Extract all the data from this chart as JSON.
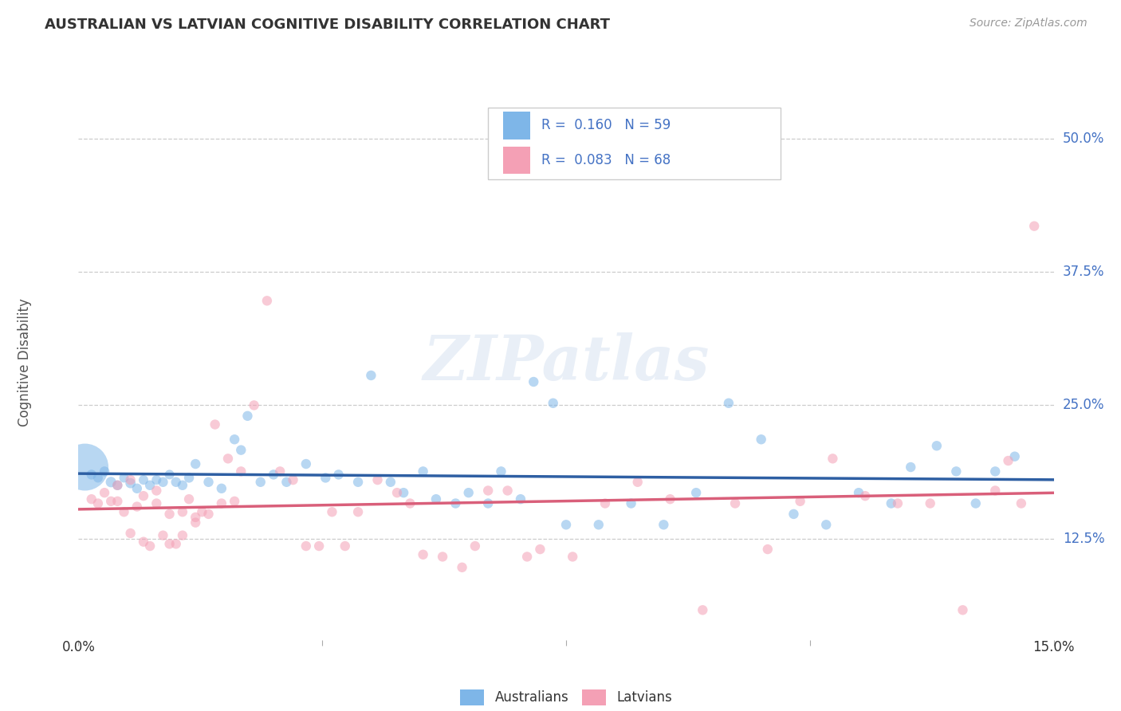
{
  "title": "AUSTRALIAN VS LATVIAN COGNITIVE DISABILITY CORRELATION CHART",
  "source": "Source: ZipAtlas.com",
  "ylabel": "Cognitive Disability",
  "ytick_values": [
    0.125,
    0.25,
    0.375,
    0.5
  ],
  "ytick_labels": [
    "12.5%",
    "25.0%",
    "37.5%",
    "50.0%"
  ],
  "xlim": [
    0.0,
    0.15
  ],
  "ylim": [
    0.03,
    0.55
  ],
  "australian_color": "#7EB6E8",
  "latvian_color": "#F4A0B5",
  "australian_line_color": "#2E5FA3",
  "latvian_line_color": "#D95F7A",
  "r_australian": 0.16,
  "n_australian": 59,
  "r_latvian": 0.083,
  "n_latvian": 68,
  "australians_x": [
    0.001,
    0.002,
    0.003,
    0.004,
    0.005,
    0.006,
    0.007,
    0.008,
    0.009,
    0.01,
    0.011,
    0.012,
    0.013,
    0.014,
    0.015,
    0.016,
    0.017,
    0.018,
    0.02,
    0.022,
    0.024,
    0.025,
    0.026,
    0.028,
    0.03,
    0.032,
    0.035,
    0.038,
    0.04,
    0.043,
    0.045,
    0.048,
    0.05,
    0.053,
    0.055,
    0.058,
    0.06,
    0.063,
    0.065,
    0.068,
    0.07,
    0.073,
    0.075,
    0.08,
    0.085,
    0.09,
    0.095,
    0.1,
    0.105,
    0.11,
    0.115,
    0.12,
    0.125,
    0.128,
    0.132,
    0.135,
    0.138,
    0.141,
    0.144
  ],
  "australians_y": [
    0.192,
    0.185,
    0.182,
    0.188,
    0.178,
    0.175,
    0.182,
    0.177,
    0.172,
    0.18,
    0.175,
    0.18,
    0.178,
    0.185,
    0.178,
    0.175,
    0.182,
    0.195,
    0.178,
    0.172,
    0.218,
    0.208,
    0.24,
    0.178,
    0.185,
    0.178,
    0.195,
    0.182,
    0.185,
    0.178,
    0.278,
    0.178,
    0.168,
    0.188,
    0.162,
    0.158,
    0.168,
    0.158,
    0.188,
    0.162,
    0.272,
    0.252,
    0.138,
    0.138,
    0.158,
    0.138,
    0.168,
    0.252,
    0.218,
    0.148,
    0.138,
    0.168,
    0.158,
    0.192,
    0.212,
    0.188,
    0.158,
    0.188,
    0.202
  ],
  "australians_size": [
    1800,
    80,
    75,
    80,
    90,
    80,
    75,
    85,
    80,
    75,
    80,
    75,
    80,
    75,
    80,
    80,
    80,
    80,
    80,
    80,
    80,
    80,
    80,
    80,
    80,
    80,
    80,
    80,
    80,
    80,
    80,
    80,
    80,
    80,
    80,
    80,
    80,
    80,
    80,
    80,
    80,
    80,
    80,
    80,
    80,
    80,
    80,
    80,
    80,
    80,
    80,
    80,
    80,
    80,
    80,
    80,
    80,
    80,
    80
  ],
  "latvians_x": [
    0.002,
    0.003,
    0.004,
    0.005,
    0.006,
    0.007,
    0.008,
    0.009,
    0.01,
    0.011,
    0.012,
    0.013,
    0.014,
    0.015,
    0.016,
    0.017,
    0.018,
    0.019,
    0.021,
    0.023,
    0.025,
    0.027,
    0.029,
    0.031,
    0.033,
    0.035,
    0.037,
    0.039,
    0.041,
    0.043,
    0.046,
    0.049,
    0.051,
    0.053,
    0.056,
    0.059,
    0.061,
    0.063,
    0.066,
    0.069,
    0.071,
    0.076,
    0.081,
    0.086,
    0.091,
    0.096,
    0.101,
    0.106,
    0.111,
    0.116,
    0.121,
    0.126,
    0.131,
    0.136,
    0.141,
    0.143,
    0.145,
    0.147,
    0.006,
    0.008,
    0.01,
    0.012,
    0.014,
    0.016,
    0.018,
    0.02,
    0.022,
    0.024
  ],
  "latvians_y": [
    0.162,
    0.158,
    0.168,
    0.16,
    0.175,
    0.15,
    0.13,
    0.155,
    0.122,
    0.118,
    0.17,
    0.128,
    0.148,
    0.12,
    0.15,
    0.162,
    0.145,
    0.15,
    0.232,
    0.2,
    0.188,
    0.25,
    0.348,
    0.188,
    0.18,
    0.118,
    0.118,
    0.15,
    0.118,
    0.15,
    0.18,
    0.168,
    0.158,
    0.11,
    0.108,
    0.098,
    0.118,
    0.17,
    0.17,
    0.108,
    0.115,
    0.108,
    0.158,
    0.178,
    0.162,
    0.058,
    0.158,
    0.115,
    0.16,
    0.2,
    0.165,
    0.158,
    0.158,
    0.058,
    0.17,
    0.198,
    0.158,
    0.418,
    0.16,
    0.18,
    0.165,
    0.158,
    0.12,
    0.128,
    0.14,
    0.148,
    0.158,
    0.16
  ],
  "latvians_size": [
    80,
    80,
    80,
    80,
    80,
    80,
    80,
    80,
    80,
    80,
    80,
    80,
    80,
    80,
    80,
    80,
    80,
    80,
    80,
    80,
    80,
    80,
    80,
    80,
    80,
    80,
    80,
    80,
    80,
    80,
    80,
    80,
    80,
    80,
    80,
    80,
    80,
    80,
    80,
    80,
    80,
    80,
    80,
    80,
    80,
    80,
    80,
    80,
    80,
    80,
    80,
    80,
    80,
    80,
    80,
    80,
    80,
    80,
    80,
    80,
    80,
    80,
    80,
    80,
    80,
    80,
    80,
    80
  ],
  "watermark": "ZIPatlas",
  "grid_color": "#cccccc",
  "background_color": "#ffffff",
  "tick_color": "#4472C4"
}
